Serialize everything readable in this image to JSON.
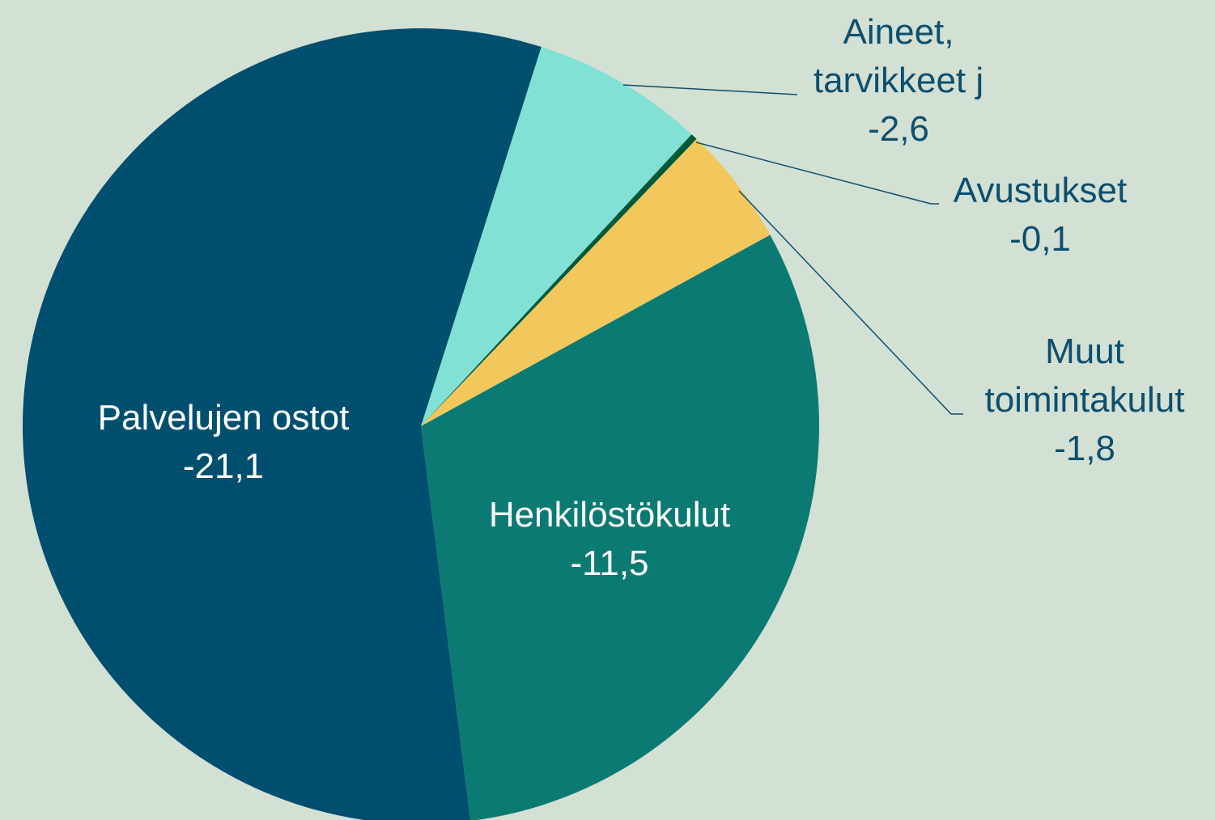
{
  "chart_data": {
    "type": "pie",
    "categories": [
      "Palvelujen ostot",
      "Henkilöstökulut",
      "Muut toimintakulut",
      "Avustukset",
      "Aineet, tarvikkeet j"
    ],
    "values": [
      -21.1,
      -11.5,
      -1.8,
      -0.1,
      -2.6
    ],
    "value_labels": [
      "-21,1",
      "-11,5",
      "-1,8",
      "-0,1",
      "-2,6"
    ],
    "colors": [
      "#004f6e",
      "#0b7a73",
      "#f2c75c",
      "#005a3a",
      "#80e1d4"
    ]
  }
}
